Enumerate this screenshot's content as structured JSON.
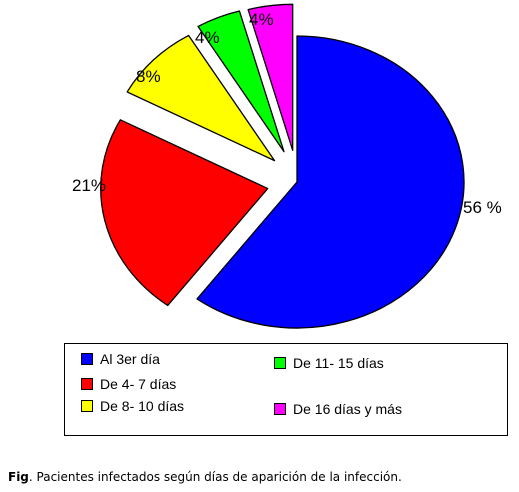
{
  "chart_data": {
    "type": "pie",
    "labels": [
      "Al 3er día",
      "De 4- 7 días",
      "De 8- 10 días",
      "De 11- 15 días",
      "De 16 días y más"
    ],
    "values": [
      56,
      21,
      8,
      4,
      4
    ],
    "value_labels": [
      "56 %",
      "21%",
      "8%",
      "4%",
      "4%"
    ],
    "colors": [
      "#0000FF",
      "#FF0000",
      "#FFFF00",
      "#00FF00",
      "#FF00FF"
    ],
    "exploded": true,
    "legend_position": "bottom"
  },
  "caption": {
    "prefix": "Fig",
    "text": ". Pacientes infectados según días de aparición de la infección."
  }
}
